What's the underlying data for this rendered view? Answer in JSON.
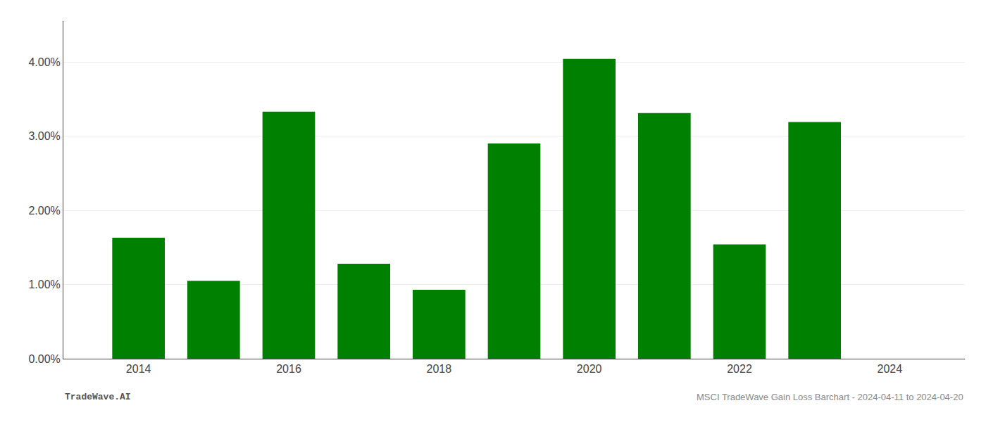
{
  "chart_data": {
    "type": "bar",
    "x": [
      2014,
      2015,
      2016,
      2017,
      2018,
      2019,
      2020,
      2021,
      2022,
      2023
    ],
    "values": [
      0.0163,
      0.0105,
      0.0333,
      0.0128,
      0.0093,
      0.029,
      0.0404,
      0.0331,
      0.0154,
      0.0319
    ],
    "color": "#008000",
    "xlim": [
      2013.0,
      2025.0
    ],
    "xticks": [
      2014,
      2016,
      2018,
      2020,
      2022,
      2024
    ],
    "ylim": [
      0,
      0.0455
    ],
    "yticks": [
      {
        "value": 0.0,
        "label": "0.00%"
      },
      {
        "value": 0.01,
        "label": "1.00%"
      },
      {
        "value": 0.02,
        "label": "2.00%"
      },
      {
        "value": 0.03,
        "label": "3.00%"
      },
      {
        "value": 0.04,
        "label": "4.00%"
      }
    ],
    "grid": true,
    "annotations": [
      "TradeWave.AI",
      "MSCI TradeWave Gain Loss Barchart - 2024-04-11 to 2024-04-20"
    ]
  }
}
